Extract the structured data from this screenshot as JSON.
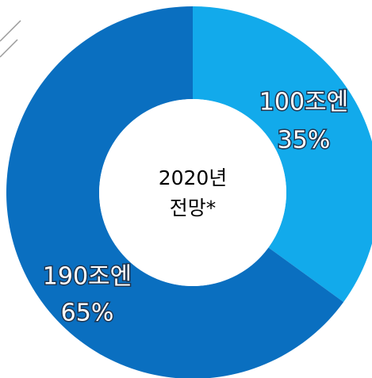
{
  "chart_data": {
    "type": "pie",
    "categories": [
      "100조엔",
      "190조엔"
    ],
    "values": [
      35,
      65
    ],
    "value_labels": [
      "35%",
      "65%"
    ],
    "colors": [
      "#12aaeb",
      "#0a6fc0"
    ],
    "center_label": [
      "2020년",
      "전망*"
    ]
  }
}
